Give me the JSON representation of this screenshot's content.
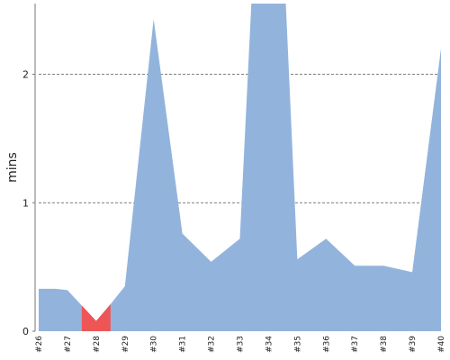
{
  "chart_data": {
    "type": "area",
    "ylabel": "mins",
    "xlabel": "",
    "title": "",
    "ylim": [
      0,
      2.55
    ],
    "x_range": [
      26,
      40
    ],
    "y_ticks": [
      0,
      1,
      2
    ],
    "grid": "horizontal dashed at 1 and 2",
    "x_tick_labels": [
      "#26",
      "#27",
      "#28",
      "#29",
      "#30",
      "#31",
      "#32",
      "#33",
      "#34",
      "#35",
      "#36",
      "#37",
      "#38",
      "#39",
      "#40"
    ],
    "series": [
      {
        "color": "#92b4dc",
        "points": [
          [
            26,
            0.33
          ],
          [
            26.6,
            0.33
          ],
          [
            27,
            0.32
          ],
          [
            27.5,
            0.2
          ],
          [
            28,
            0.08
          ],
          [
            28.5,
            0.21
          ],
          [
            29,
            0.35
          ],
          [
            30,
            2.43
          ],
          [
            31,
            0.76
          ],
          [
            32,
            0.54
          ],
          [
            33,
            0.72
          ],
          [
            33.4,
            2.55
          ],
          [
            34.6,
            2.55
          ],
          [
            35,
            0.56
          ],
          [
            36,
            0.72
          ],
          [
            37,
            0.51
          ],
          [
            38,
            0.51
          ],
          [
            39,
            0.46
          ],
          [
            40,
            2.2
          ]
        ]
      }
    ],
    "highlight": {
      "color": "#ee5555",
      "x_from": 27.5,
      "x_to": 28.5
    }
  }
}
